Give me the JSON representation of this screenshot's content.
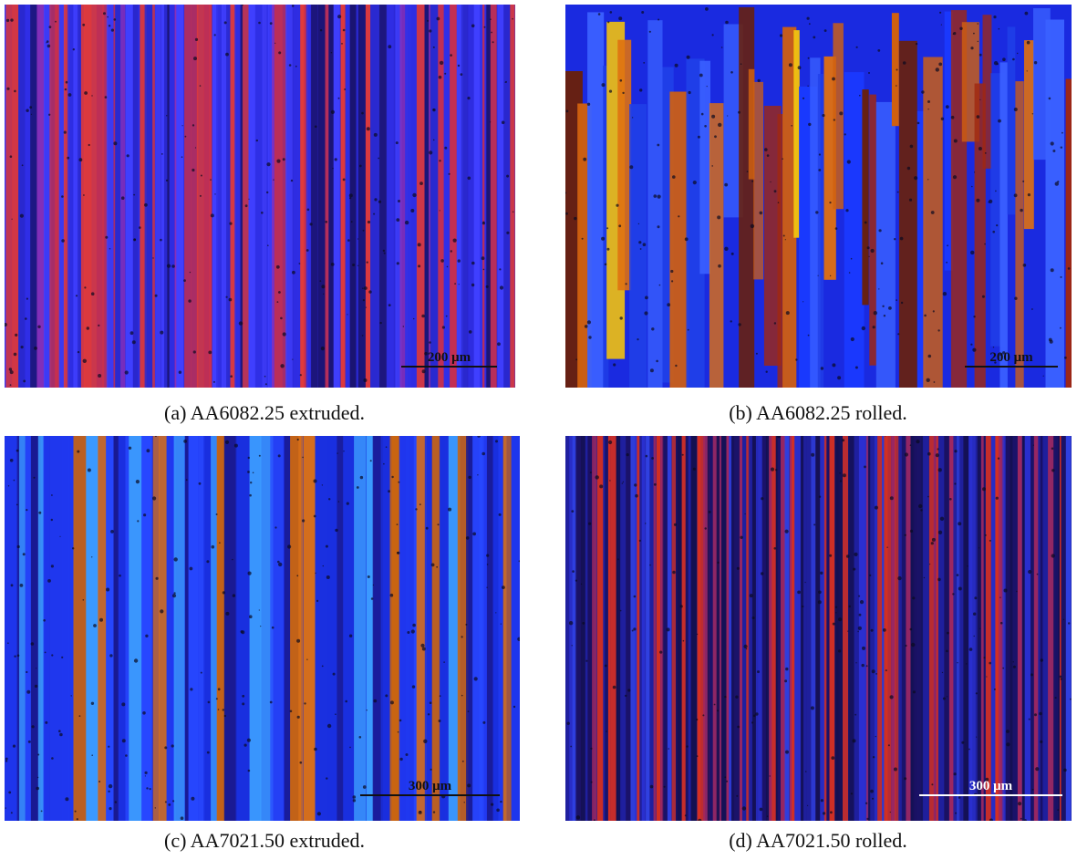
{
  "figures": [
    {
      "caption": "(a) AA6082.25 extruded.",
      "scale_bar": "200 μm"
    },
    {
      "caption": "(b) AA6082.25 rolled.",
      "scale_bar": "200 μm"
    },
    {
      "caption": "(c) AA7021.50 extruded.",
      "scale_bar": "300 μm"
    },
    {
      "caption": "(d) AA7021.50 rolled.",
      "scale_bar": "300 μm"
    }
  ]
}
